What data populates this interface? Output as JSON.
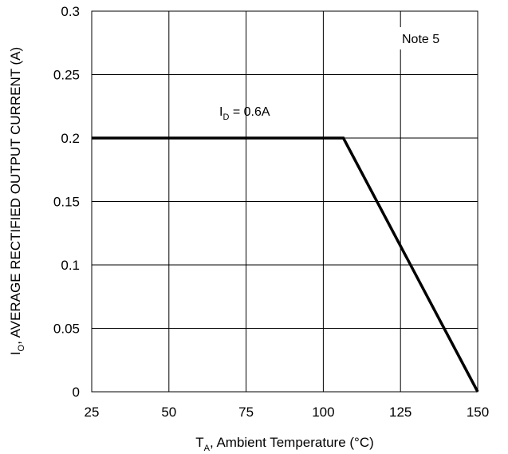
{
  "chart_data": {
    "type": "line",
    "xlabel_main": "T",
    "xlabel_sub": "A",
    "xlabel_rest": ", Ambient Temperature (°C)",
    "ylabel_main": "I",
    "ylabel_sub": "O",
    "ylabel_rest": ", AVERAGE RECTIFIED OUTPUT CURRENT (A)",
    "xlim": [
      25,
      150
    ],
    "ylim": [
      0,
      0.3
    ],
    "x_ticks": [
      25,
      50,
      75,
      100,
      125,
      150
    ],
    "x_tick_labels": [
      "25",
      "50",
      "75",
      "100",
      "125",
      "150"
    ],
    "y_ticks": [
      0,
      0.05,
      0.1,
      0.15,
      0.2,
      0.25,
      0.3
    ],
    "y_tick_labels": [
      "0",
      "0.05",
      "0.1",
      "0.15",
      "0.2",
      "0.25",
      "0.3"
    ],
    "grid": true,
    "series": [
      {
        "x": [
          25,
          106.5,
          150
        ],
        "y": [
          0.2,
          0.2,
          0
        ],
        "color": "#000000"
      }
    ],
    "annotations": {
      "curve_label_main": "I",
      "curve_label_sub": "D",
      "curve_label_rest": " = 0.6A",
      "note": "Note 5"
    }
  }
}
